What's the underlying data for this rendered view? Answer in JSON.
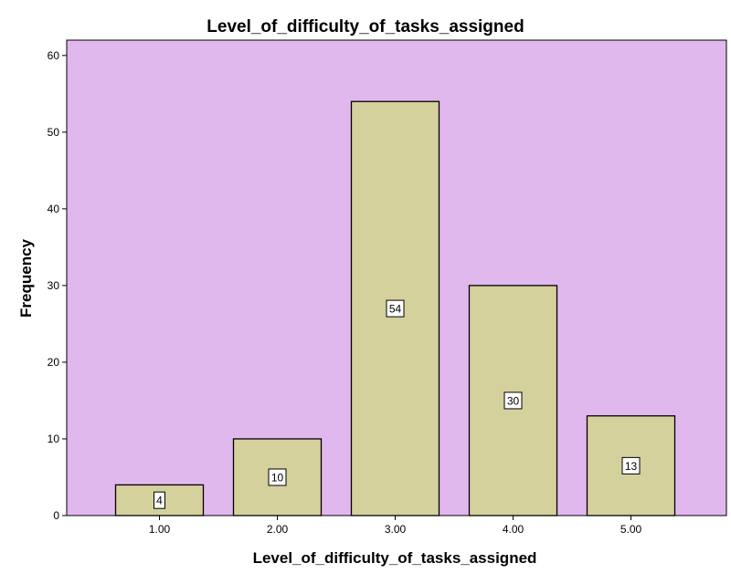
{
  "chart_data": {
    "type": "bar",
    "title": "Level_of_difficulty_of_tasks_assigned",
    "xlabel": "Level_of_difficulty_of_tasks_assigned",
    "ylabel": "Frequency",
    "categories": [
      "1.00",
      "2.00",
      "3.00",
      "4.00",
      "5.00"
    ],
    "values": [
      4,
      10,
      54,
      30,
      13
    ],
    "data_labels": [
      "4",
      "10",
      "54",
      "30",
      "13"
    ],
    "ylim": [
      0,
      62
    ],
    "yticks": [
      0,
      10,
      20,
      30,
      40,
      50,
      60
    ],
    "ytick_labels": [
      "0",
      "10",
      "20",
      "30",
      "40",
      "50",
      "60"
    ],
    "grid": false,
    "colors": {
      "plot_background": "#e0b8ee",
      "bar_fill": "#d5d19c",
      "bar_stroke": "#000000",
      "label_box": "#ffffff"
    }
  }
}
